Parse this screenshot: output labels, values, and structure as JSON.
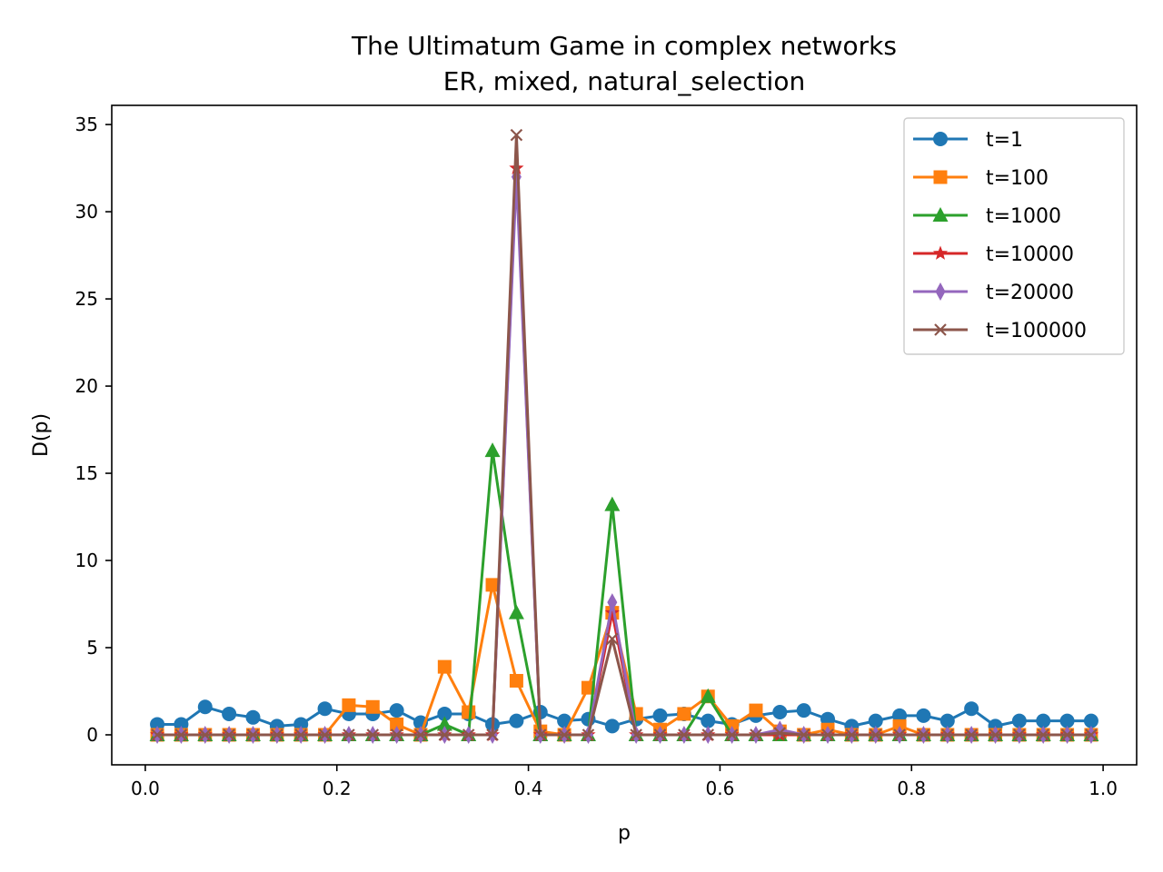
{
  "chart_data": {
    "type": "line",
    "title": [
      "The Ultimatum Game in complex networks",
      "ER, mixed, natural_selection"
    ],
    "xlabel": "p",
    "ylabel": "D(p)",
    "xlim": [
      -0.035,
      1.035
    ],
    "ylim": [
      -1.72,
      36.1
    ],
    "xticks": [
      0.0,
      0.2,
      0.4,
      0.6,
      0.8,
      1.0
    ],
    "xtick_labels": [
      "0.0",
      "0.2",
      "0.4",
      "0.6",
      "0.8",
      "1.0"
    ],
    "yticks": [
      0,
      5,
      10,
      15,
      20,
      25,
      30,
      35
    ],
    "ytick_labels": [
      "0",
      "5",
      "10",
      "15",
      "20",
      "25",
      "30",
      "35"
    ],
    "grid": false,
    "legend_position": "top-right",
    "x": [
      0.0125,
      0.0375,
      0.0625,
      0.0875,
      0.1125,
      0.1375,
      0.1625,
      0.1875,
      0.2125,
      0.2375,
      0.2625,
      0.2875,
      0.3125,
      0.3375,
      0.3625,
      0.3875,
      0.4125,
      0.4375,
      0.4625,
      0.4875,
      0.5125,
      0.5375,
      0.5625,
      0.5875,
      0.6125,
      0.6375,
      0.6625,
      0.6875,
      0.7125,
      0.7375,
      0.7625,
      0.7875,
      0.8125,
      0.8375,
      0.8625,
      0.8875,
      0.9125,
      0.9375,
      0.9625,
      0.9875
    ],
    "series": [
      {
        "name": "t=1",
        "color": "#1f77b4",
        "marker": "circle",
        "values": [
          0.6,
          0.6,
          1.6,
          1.2,
          1.0,
          0.5,
          0.6,
          1.5,
          1.2,
          1.2,
          1.4,
          0.7,
          1.2,
          1.2,
          0.6,
          0.8,
          1.3,
          0.8,
          0.9,
          0.5,
          0.9,
          1.1,
          1.2,
          0.8,
          0.6,
          1.1,
          1.3,
          1.4,
          0.9,
          0.5,
          0.8,
          1.1,
          1.1,
          0.8,
          1.5,
          0.5,
          0.8,
          0.8,
          0.8,
          0.8
        ]
      },
      {
        "name": "t=100",
        "color": "#ff7f0e",
        "marker": "square",
        "values": [
          0.0,
          0.0,
          0.0,
          0.0,
          0.0,
          0.0,
          0.0,
          0.0,
          1.7,
          1.6,
          0.6,
          0.0,
          3.9,
          1.3,
          8.6,
          3.1,
          0.2,
          0.0,
          2.7,
          7.0,
          1.2,
          0.3,
          1.2,
          2.2,
          0.5,
          1.4,
          0.2,
          0.0,
          0.3,
          0.0,
          0.0,
          0.5,
          0.0,
          0.0,
          0.0,
          0.0,
          0.0,
          0.0,
          0.0,
          0.0
        ]
      },
      {
        "name": "t=1000",
        "color": "#2ca02c",
        "marker": "triangle",
        "values": [
          0.0,
          0.0,
          0.0,
          0.0,
          0.0,
          0.0,
          0.0,
          0.0,
          0.0,
          0.0,
          0.0,
          0.0,
          0.6,
          0.0,
          16.3,
          7.0,
          0.0,
          0.0,
          0.0,
          13.2,
          0.0,
          0.0,
          0.0,
          2.2,
          0.0,
          0.0,
          0.0,
          0.0,
          0.0,
          0.0,
          0.0,
          0.0,
          0.0,
          0.0,
          0.0,
          0.0,
          0.0,
          0.0,
          0.0,
          0.0
        ]
      },
      {
        "name": "t=10000",
        "color": "#d62728",
        "marker": "star",
        "values": [
          0.0,
          0.0,
          0.0,
          0.0,
          0.0,
          0.0,
          0.0,
          0.0,
          0.0,
          0.0,
          0.0,
          0.0,
          0.0,
          0.0,
          0.0,
          32.5,
          0.0,
          0.0,
          0.0,
          7.0,
          0.0,
          0.0,
          0.0,
          0.0,
          0.0,
          0.0,
          0.0,
          0.0,
          0.0,
          0.0,
          0.0,
          0.0,
          0.0,
          0.0,
          0.0,
          0.0,
          0.0,
          0.0,
          0.0,
          0.0
        ]
      },
      {
        "name": "t=20000",
        "color": "#9467bd",
        "marker": "diamond",
        "values": [
          0.0,
          0.0,
          0.0,
          0.0,
          0.0,
          0.0,
          0.0,
          0.0,
          0.0,
          0.0,
          0.0,
          0.0,
          0.0,
          0.0,
          0.0,
          32.0,
          0.0,
          0.0,
          0.0,
          7.6,
          0.0,
          0.0,
          0.0,
          0.0,
          0.0,
          0.0,
          0.3,
          0.0,
          0.0,
          0.0,
          0.0,
          0.0,
          0.0,
          0.0,
          0.0,
          0.0,
          0.0,
          0.0,
          0.0,
          0.0
        ]
      },
      {
        "name": "t=100000",
        "color": "#8c564b",
        "marker": "x",
        "values": [
          0.0,
          0.0,
          0.0,
          0.0,
          0.0,
          0.0,
          0.0,
          0.0,
          0.0,
          0.0,
          0.0,
          0.0,
          0.0,
          0.0,
          0.0,
          34.4,
          0.0,
          0.0,
          0.0,
          5.5,
          0.0,
          0.0,
          0.0,
          0.0,
          0.0,
          0.0,
          0.1,
          0.0,
          0.0,
          0.0,
          0.0,
          0.0,
          0.0,
          0.0,
          0.0,
          0.0,
          0.0,
          0.0,
          0.0,
          0.0
        ]
      }
    ]
  }
}
